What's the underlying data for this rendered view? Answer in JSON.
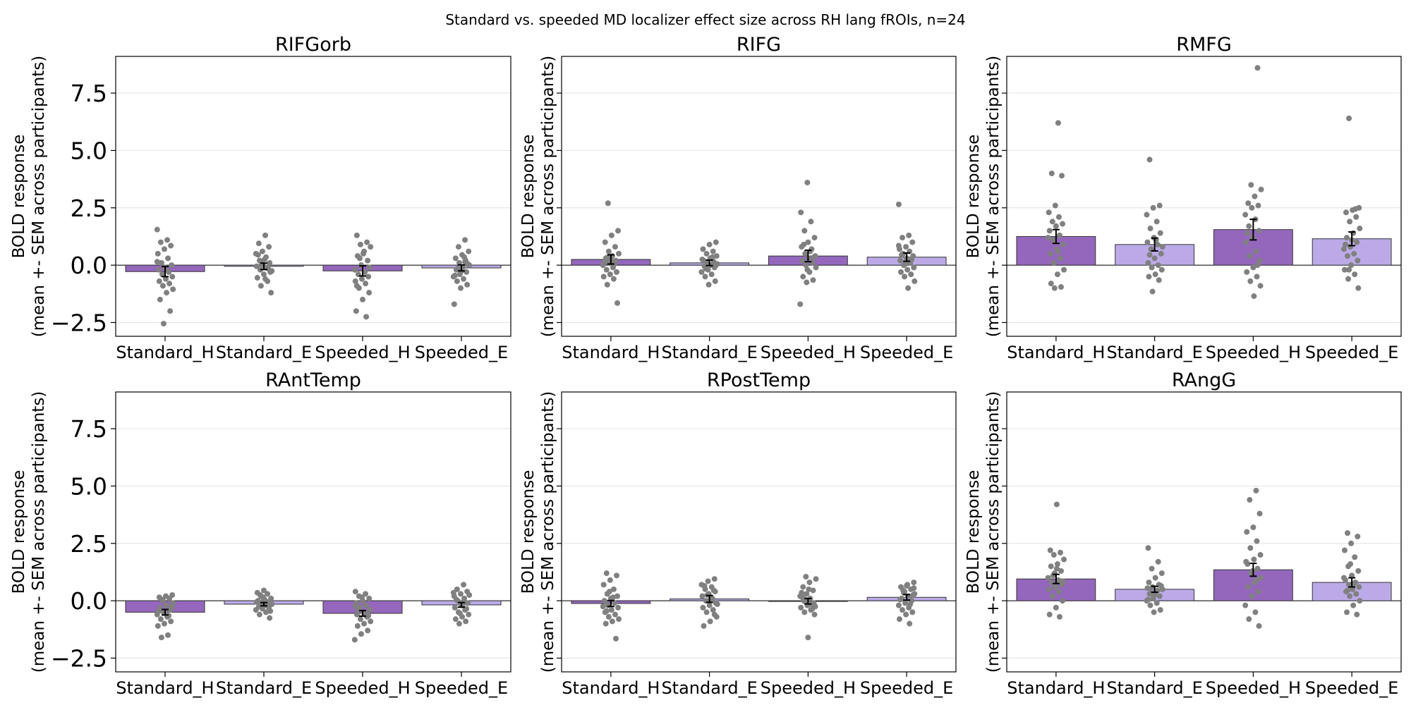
{
  "figure": {
    "title": "Standard vs. speeded MD localizer effect size across RH lang fROIs, n=24"
  },
  "colors": {
    "hard": "#9467bd",
    "easy": "#bcaae8",
    "points": "#808080",
    "grid": "#e6e6e6"
  },
  "chart_data": [
    {
      "type": "bar",
      "title": "RIFGorb",
      "categories": [
        "Standard_H",
        "Standard_E",
        "Speeded_H",
        "Speeded_E"
      ],
      "values": [
        -0.28,
        -0.05,
        -0.25,
        -0.12
      ],
      "sem": [
        0.22,
        0.14,
        0.22,
        0.13
      ],
      "points": [
        [
          1.55,
          1.1,
          1.0,
          0.85,
          0.7,
          0.5,
          0.3,
          0.1,
          0.0,
          -0.1,
          -0.2,
          -0.3,
          -0.4,
          -0.5,
          -0.6,
          -0.7,
          -0.8,
          -0.9,
          -1.05,
          -1.2,
          -1.5,
          -2.0,
          -2.55,
          0.15
        ],
        [
          1.3,
          0.95,
          0.8,
          0.6,
          0.5,
          0.35,
          0.2,
          0.1,
          0.0,
          -0.05,
          -0.1,
          -0.2,
          -0.3,
          -0.4,
          -0.55,
          -0.7,
          -0.9,
          -1.2,
          0.25,
          0.45,
          -0.15,
          0.05,
          -0.25,
          -0.6
        ],
        [
          1.3,
          1.0,
          0.9,
          0.8,
          0.6,
          0.4,
          0.2,
          0.0,
          -0.2,
          -0.3,
          -0.4,
          -0.5,
          -0.6,
          -0.7,
          -0.8,
          -1.0,
          -1.2,
          -1.5,
          -2.0,
          -2.25,
          0.3,
          -0.1,
          0.5,
          -0.9
        ],
        [
          1.1,
          0.8,
          0.6,
          0.45,
          0.3,
          0.2,
          0.1,
          0.0,
          -0.1,
          -0.2,
          -0.3,
          -0.4,
          -0.5,
          -0.6,
          -0.7,
          -0.85,
          -1.0,
          -1.7,
          0.35,
          -0.15,
          0.05,
          -0.25,
          -0.45,
          0.15
        ]
      ],
      "xlabel": "",
      "ylabel": "BOLD response\n(mean +- SEM across participants)",
      "ylim": [
        -3.1,
        9.1
      ],
      "yticks": [
        "−2.5",
        "0.0",
        "2.5",
        "5.0",
        "7.5"
      ],
      "grid": true,
      "legend": "none"
    },
    {
      "type": "bar",
      "title": "RIFG",
      "categories": [
        "Standard_H",
        "Standard_E",
        "Speeded_H",
        "Speeded_E"
      ],
      "values": [
        0.25,
        0.1,
        0.4,
        0.35
      ],
      "sem": [
        0.2,
        0.12,
        0.25,
        0.18
      ],
      "points": [
        [
          2.7,
          1.5,
          1.3,
          1.0,
          0.8,
          0.6,
          0.5,
          0.4,
          0.3,
          0.2,
          0.1,
          0.0,
          -0.1,
          -0.2,
          -0.3,
          -0.4,
          -0.5,
          -0.6,
          -0.85,
          -1.65,
          0.25,
          0.15,
          0.05,
          0.35
        ],
        [
          1.0,
          0.9,
          0.7,
          0.6,
          0.5,
          0.4,
          0.3,
          0.2,
          0.15,
          0.1,
          0.05,
          0.0,
          -0.05,
          -0.1,
          -0.2,
          -0.3,
          -0.4,
          -0.5,
          -0.7,
          -0.85,
          0.25,
          0.35,
          -0.15,
          0.0
        ],
        [
          3.6,
          2.3,
          1.9,
          1.5,
          1.2,
          1.0,
          0.8,
          0.7,
          0.5,
          0.4,
          0.3,
          0.2,
          0.1,
          0.0,
          -0.1,
          -0.3,
          -0.5,
          -0.65,
          -0.75,
          -1.7,
          0.6,
          0.9,
          0.35,
          -0.2
        ],
        [
          2.65,
          1.3,
          1.2,
          1.0,
          0.8,
          0.7,
          0.6,
          0.5,
          0.4,
          0.3,
          0.2,
          0.1,
          0.0,
          -0.1,
          -0.2,
          -0.3,
          -0.4,
          -0.5,
          -0.7,
          -1.0,
          0.45,
          0.25,
          0.05,
          0.85
        ]
      ],
      "xlabel": "",
      "ylabel": "BOLD response\n(mean +- SEM across participants)",
      "ylim": [
        -3.1,
        9.1
      ],
      "yticks": [
        "−2.5",
        "0.0",
        "2.5",
        "5.0",
        "7.5"
      ],
      "grid": true,
      "legend": "none"
    },
    {
      "type": "bar",
      "title": "RMFG",
      "categories": [
        "Standard_H",
        "Standard_E",
        "Speeded_H",
        "Speeded_E"
      ],
      "values": [
        1.25,
        0.9,
        1.55,
        1.15
      ],
      "sem": [
        0.3,
        0.28,
        0.45,
        0.3
      ],
      "points": [
        [
          6.2,
          4.0,
          3.9,
          2.6,
          2.3,
          2.1,
          1.9,
          1.8,
          1.7,
          1.5,
          1.3,
          1.1,
          0.9,
          0.7,
          0.5,
          0.3,
          0.1,
          -0.2,
          -0.4,
          -0.8,
          -0.95,
          -1.0,
          1.2,
          0.6
        ],
        [
          4.6,
          2.6,
          2.5,
          2.2,
          1.9,
          1.6,
          1.4,
          1.2,
          1.0,
          0.9,
          0.7,
          0.5,
          0.3,
          0.1,
          0.0,
          -0.1,
          -0.2,
          -0.4,
          -0.5,
          -0.65,
          -1.15,
          0.8,
          1.1,
          0.45
        ],
        [
          8.6,
          3.5,
          3.3,
          3.0,
          2.7,
          2.6,
          2.5,
          2.2,
          2.0,
          1.7,
          1.5,
          1.2,
          1.0,
          0.6,
          0.4,
          0.2,
          -0.1,
          -0.3,
          -0.5,
          -0.7,
          -0.9,
          -1.35,
          1.4,
          0.0
        ],
        [
          6.4,
          2.5,
          2.4,
          2.3,
          2.1,
          1.9,
          1.6,
          1.4,
          1.2,
          1.0,
          0.8,
          0.7,
          0.5,
          0.4,
          0.2,
          0.0,
          -0.2,
          -0.4,
          -0.6,
          -1.0,
          1.1,
          0.9,
          2.45,
          -0.2
        ]
      ],
      "xlabel": "",
      "ylabel": "BOLD response\n(mean +- SEM across participants)",
      "ylim": [
        -3.1,
        9.1
      ],
      "yticks": [
        "−2.5",
        "0.0",
        "2.5",
        "5.0",
        "7.5"
      ],
      "grid": true,
      "legend": "none"
    },
    {
      "type": "bar",
      "title": "RAntTemp",
      "categories": [
        "Standard_H",
        "Standard_E",
        "Speeded_H",
        "Speeded_E"
      ],
      "values": [
        -0.5,
        -0.15,
        -0.55,
        -0.18
      ],
      "sem": [
        0.12,
        0.07,
        0.12,
        0.1
      ],
      "points": [
        [
          0.25,
          0.2,
          0.15,
          0.1,
          0.0,
          -0.1,
          -0.2,
          -0.3,
          -0.4,
          -0.5,
          -0.6,
          -0.7,
          -0.8,
          -0.9,
          -1.0,
          -1.1,
          -1.5,
          -1.6,
          -0.35,
          -0.55,
          -0.45,
          -0.65,
          0.05,
          -0.25
        ],
        [
          0.45,
          0.35,
          0.3,
          0.2,
          0.1,
          0.05,
          0.0,
          -0.05,
          -0.1,
          -0.15,
          -0.2,
          -0.25,
          -0.3,
          -0.35,
          -0.4,
          -0.5,
          -0.6,
          -0.75,
          0.15,
          -0.05,
          -0.2,
          0.25,
          -0.45,
          0.05
        ],
        [
          0.4,
          0.3,
          0.2,
          0.1,
          0.0,
          -0.1,
          -0.2,
          -0.3,
          -0.4,
          -0.5,
          -0.6,
          -0.7,
          -0.8,
          -0.9,
          -1.0,
          -1.1,
          -1.3,
          -1.45,
          -1.7,
          -0.55,
          -0.35,
          -0.65,
          0.15,
          -0.25
        ],
        [
          0.7,
          0.5,
          0.4,
          0.3,
          0.2,
          0.1,
          0.0,
          -0.1,
          -0.2,
          -0.3,
          -0.4,
          -0.5,
          -0.6,
          -0.7,
          -0.8,
          -0.9,
          -1.0,
          0.25,
          -0.15,
          0.05,
          -0.35,
          -0.55,
          0.35,
          -0.05
        ]
      ],
      "xlabel": "",
      "ylabel": "BOLD response\n(mean +- SEM across participants)",
      "ylim": [
        -3.1,
        9.1
      ],
      "yticks": [
        "−2.5",
        "0.0",
        "2.5",
        "5.0",
        "7.5"
      ],
      "grid": true,
      "legend": "none"
    },
    {
      "type": "bar",
      "title": "RPostTemp",
      "categories": [
        "Standard_H",
        "Standard_E",
        "Speeded_H",
        "Speeded_E"
      ],
      "values": [
        -0.12,
        0.08,
        -0.02,
        0.15
      ],
      "sem": [
        0.13,
        0.15,
        0.12,
        0.12
      ],
      "points": [
        [
          1.2,
          1.1,
          0.9,
          0.7,
          0.5,
          0.3,
          0.2,
          0.1,
          0.0,
          -0.1,
          -0.2,
          -0.3,
          -0.4,
          -0.5,
          -0.6,
          -0.7,
          -0.8,
          -0.9,
          -1.0,
          -1.65,
          0.4,
          -0.25,
          0.15,
          -0.45
        ],
        [
          0.95,
          0.85,
          0.7,
          0.6,
          0.5,
          0.4,
          0.3,
          0.2,
          0.1,
          0.0,
          -0.1,
          -0.2,
          -0.3,
          -0.4,
          -0.5,
          -0.7,
          -0.9,
          -1.1,
          0.45,
          0.25,
          -0.15,
          0.05,
          0.65,
          -0.6
        ],
        [
          1.05,
          0.95,
          0.8,
          0.6,
          0.45,
          0.3,
          0.2,
          0.1,
          0.0,
          -0.1,
          -0.2,
          -0.3,
          -0.4,
          -0.5,
          -0.6,
          -1.6,
          0.35,
          -0.15,
          0.05,
          -0.25,
          0.5,
          0.15,
          -0.35,
          -0.05
        ],
        [
          0.8,
          0.7,
          0.6,
          0.5,
          0.4,
          0.3,
          0.2,
          0.1,
          0.0,
          -0.1,
          -0.2,
          -0.3,
          -0.4,
          -0.5,
          -0.6,
          -0.8,
          -1.0,
          0.45,
          0.25,
          0.65,
          0.05,
          -0.15,
          0.35,
          0.55
        ]
      ],
      "xlabel": "",
      "ylabel": "BOLD response\n(mean +- SEM across participants)",
      "ylim": [
        -3.1,
        9.1
      ],
      "yticks": [
        "−2.5",
        "0.0",
        "2.5",
        "5.0",
        "7.5"
      ],
      "grid": true,
      "legend": "none"
    },
    {
      "type": "bar",
      "title": "RAngG",
      "categories": [
        "Standard_H",
        "Standard_E",
        "Speeded_H",
        "Speeded_E"
      ],
      "values": [
        0.95,
        0.5,
        1.35,
        0.8
      ],
      "sem": [
        0.2,
        0.13,
        0.28,
        0.2
      ],
      "points": [
        [
          4.2,
          2.2,
          2.1,
          2.0,
          1.8,
          1.6,
          1.5,
          1.3,
          1.2,
          1.0,
          0.9,
          0.8,
          0.7,
          0.6,
          0.5,
          0.4,
          0.2,
          0.0,
          -0.3,
          -0.6,
          -0.7,
          1.1,
          0.85,
          1.4
        ],
        [
          2.3,
          1.7,
          1.4,
          1.2,
          1.0,
          0.8,
          0.7,
          0.6,
          0.5,
          0.4,
          0.3,
          0.2,
          0.1,
          0.0,
          -0.1,
          -0.2,
          -0.4,
          -0.5,
          0.55,
          0.45,
          0.35,
          0.65,
          0.25,
          0.05
        ],
        [
          4.8,
          4.4,
          3.8,
          3.2,
          3.0,
          2.6,
          2.3,
          2.0,
          1.8,
          1.6,
          1.4,
          1.2,
          1.0,
          0.8,
          0.6,
          0.4,
          0.2,
          -0.2,
          -0.5,
          -0.8,
          -1.1,
          1.3,
          1.7,
          0.9
        ],
        [
          2.95,
          2.8,
          2.5,
          2.2,
          1.9,
          1.5,
          1.3,
          1.1,
          0.9,
          0.8,
          0.7,
          0.6,
          0.5,
          0.4,
          0.3,
          0.2,
          0.0,
          -0.2,
          -0.5,
          -0.6,
          1.6,
          1.0,
          0.75,
          0.45
        ]
      ],
      "xlabel": "",
      "ylabel": "BOLD response\n(mean +- SEM across participants)",
      "ylim": [
        -3.1,
        9.1
      ],
      "yticks": [
        "−2.5",
        "0.0",
        "2.5",
        "5.0",
        "7.5"
      ],
      "grid": true,
      "legend": "none"
    }
  ]
}
